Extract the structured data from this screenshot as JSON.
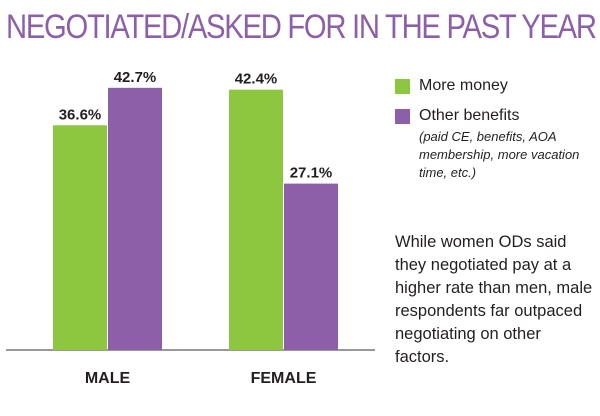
{
  "colors": {
    "green": "#8dc63f",
    "purple": "#8c5fa8",
    "title": "#8c5fa8",
    "text": "#231f20",
    "axis": "#333333"
  },
  "chart_data": {
    "type": "bar",
    "title": "NEGOTIATED/ASKED FOR IN THE PAST YEAR",
    "categories": [
      "MALE",
      "FEMALE"
    ],
    "series": [
      {
        "name": "More money",
        "values": [
          36.6,
          42.4
        ],
        "labels": [
          "36.6%",
          "42.4%"
        ]
      },
      {
        "name": "Other benefits",
        "values": [
          42.7,
          27.1
        ],
        "labels": [
          "42.7%",
          "27.1%"
        ]
      }
    ],
    "xlabel": "",
    "ylabel": "",
    "ylim": [
      0,
      50
    ],
    "grid": false,
    "legend": "right"
  },
  "legend": {
    "items": [
      {
        "label": "More money",
        "note": ""
      },
      {
        "label": "Other benefits",
        "note": "(paid CE, benefits, AOA membership, more vacation time, etc.)"
      }
    ]
  },
  "annotation": "While women ODs said they negotiated pay at a higher rate than men, male respondents far outpaced negotiating on other factors."
}
